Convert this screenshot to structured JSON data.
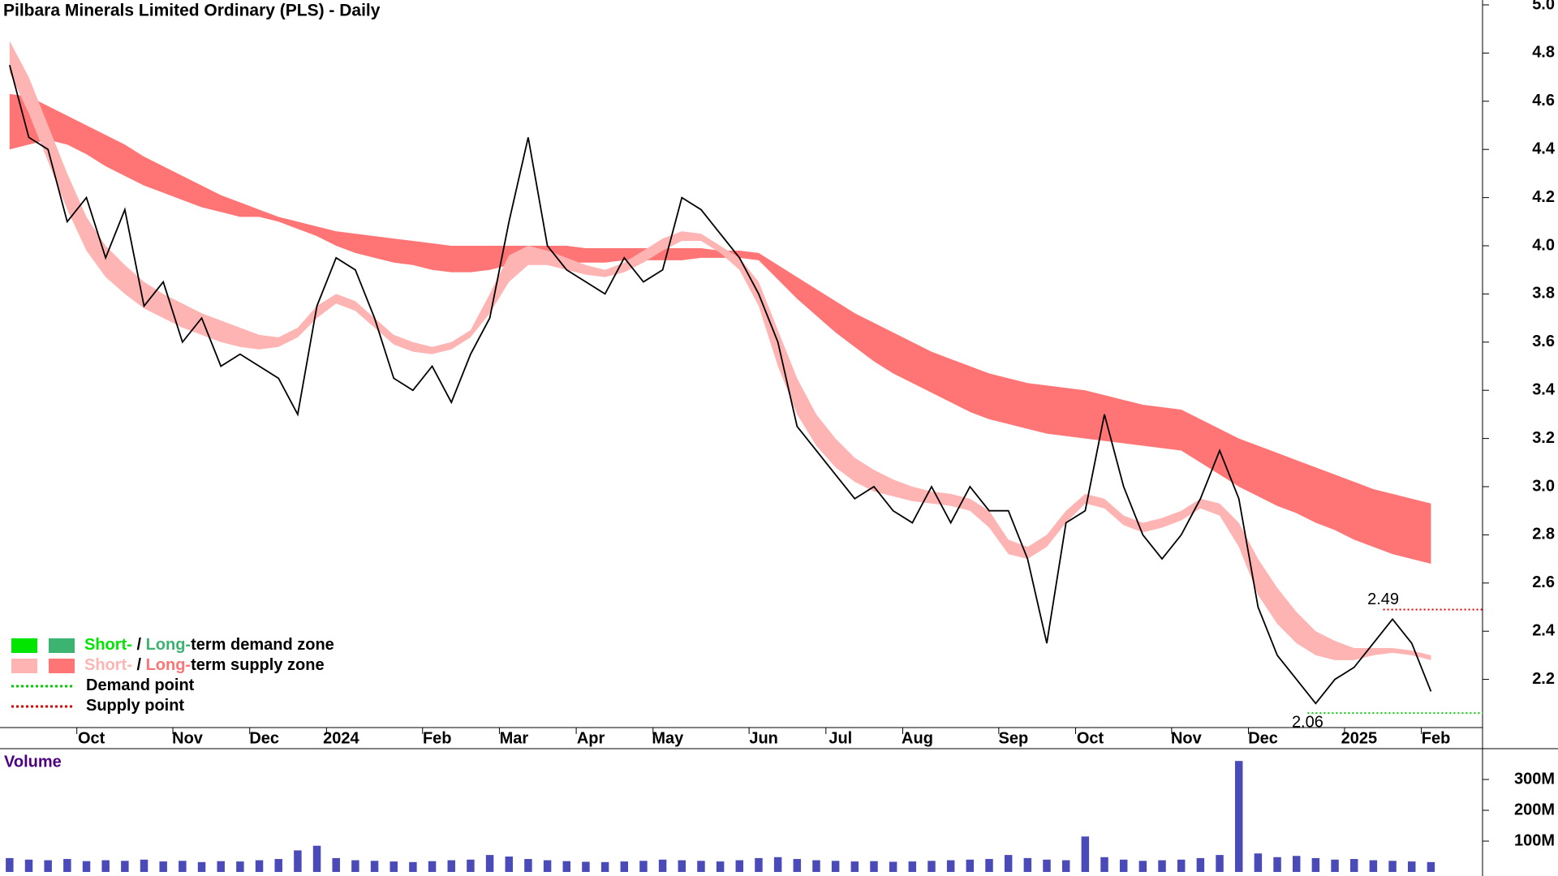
{
  "chart_data": [
    {
      "type": "line",
      "title": "Pilbara Minerals Limited Ordinary (PLS) - Daily",
      "categories": [
        null,
        null,
        null,
        null,
        "Oct",
        null,
        null,
        null,
        null,
        "Nov",
        null,
        null,
        null,
        "Dec",
        null,
        null,
        null,
        "2024",
        null,
        null,
        null,
        null,
        "Feb",
        null,
        null,
        null,
        "Mar",
        null,
        null,
        null,
        "Apr",
        null,
        null,
        null,
        "May",
        null,
        null,
        null,
        null,
        "Jun",
        null,
        null,
        null,
        "Jul",
        null,
        null,
        null,
        "Aug",
        null,
        null,
        null,
        null,
        "Sep",
        null,
        null,
        null,
        "Oct",
        null,
        null,
        null,
        null,
        "Nov",
        null,
        null,
        null,
        "Dec",
        null,
        null,
        null,
        null,
        "2025",
        null,
        null,
        null,
        "Feb"
      ],
      "series": [
        {
          "color": "#000000",
          "values": [
            4.75,
            4.45,
            4.4,
            4.1,
            4.2,
            3.95,
            4.15,
            3.75,
            3.85,
            3.6,
            3.7,
            3.5,
            3.55,
            3.5,
            3.45,
            3.3,
            3.75,
            3.95,
            3.9,
            3.7,
            3.45,
            3.4,
            3.5,
            3.35,
            3.55,
            3.7,
            4.1,
            4.45,
            4.0,
            3.9,
            3.85,
            3.8,
            3.95,
            3.85,
            3.9,
            4.2,
            4.15,
            4.05,
            3.95,
            3.8,
            3.6,
            3.25,
            3.15,
            3.05,
            2.95,
            3.0,
            2.9,
            2.85,
            3.0,
            2.85,
            3.0,
            2.9,
            2.9,
            2.7,
            2.35,
            2.85,
            2.9,
            3.3,
            3.0,
            2.8,
            2.7,
            2.8,
            2.95,
            3.15,
            2.95,
            2.5,
            2.3,
            2.2,
            2.1,
            2.2,
            2.25,
            2.35,
            2.45,
            2.35,
            2.15
          ]
        }
      ],
      "bands": [
        {
          "color": "#ff7474",
          "upper": [
            4.63,
            4.62,
            4.58,
            4.54,
            4.5,
            4.46,
            4.42,
            4.37,
            4.33,
            4.29,
            4.25,
            4.21,
            4.18,
            4.15,
            4.12,
            4.1,
            4.08,
            4.06,
            4.05,
            4.04,
            4.03,
            4.02,
            4.01,
            4.0,
            4.0,
            4.0,
            4.0,
            4.0,
            4.0,
            4.0,
            3.99,
            3.99,
            3.99,
            3.99,
            3.99,
            3.99,
            3.99,
            3.98,
            3.98,
            3.97,
            3.92,
            3.87,
            3.82,
            3.77,
            3.72,
            3.68,
            3.64,
            3.6,
            3.56,
            3.53,
            3.5,
            3.47,
            3.45,
            3.43,
            3.42,
            3.41,
            3.4,
            3.38,
            3.36,
            3.34,
            3.33,
            3.32,
            3.28,
            3.24,
            3.2,
            3.17,
            3.14,
            3.11,
            3.08,
            3.05,
            3.02,
            2.99,
            2.97,
            2.95,
            2.93
          ],
          "lower": [
            4.4,
            4.42,
            4.44,
            4.42,
            4.38,
            4.33,
            4.29,
            4.25,
            4.22,
            4.19,
            4.16,
            4.14,
            4.12,
            4.12,
            4.1,
            4.07,
            4.04,
            4.0,
            3.97,
            3.95,
            3.93,
            3.92,
            3.9,
            3.89,
            3.89,
            3.9,
            3.92,
            3.93,
            3.93,
            3.93,
            3.93,
            3.93,
            3.94,
            3.94,
            3.94,
            3.94,
            3.95,
            3.95,
            3.95,
            3.94,
            3.86,
            3.78,
            3.71,
            3.64,
            3.58,
            3.52,
            3.47,
            3.43,
            3.39,
            3.35,
            3.31,
            3.28,
            3.26,
            3.24,
            3.22,
            3.21,
            3.2,
            3.19,
            3.18,
            3.17,
            3.16,
            3.15,
            3.1,
            3.05,
            3.0,
            2.96,
            2.92,
            2.89,
            2.85,
            2.82,
            2.78,
            2.75,
            2.72,
            2.7,
            2.68
          ]
        },
        {
          "color": "#ffb4b4",
          "upper": [
            4.85,
            4.7,
            4.5,
            4.3,
            4.12,
            4.0,
            3.92,
            3.85,
            3.8,
            3.76,
            3.72,
            3.69,
            3.66,
            3.63,
            3.62,
            3.66,
            3.75,
            3.8,
            3.77,
            3.7,
            3.63,
            3.6,
            3.58,
            3.6,
            3.65,
            3.8,
            3.96,
            4.0,
            3.98,
            3.95,
            3.92,
            3.9,
            3.93,
            3.98,
            4.03,
            4.06,
            4.05,
            4.0,
            3.95,
            3.85,
            3.65,
            3.45,
            3.3,
            3.2,
            3.12,
            3.07,
            3.03,
            3.0,
            2.98,
            2.97,
            2.95,
            2.9,
            2.78,
            2.75,
            2.8,
            2.9,
            2.97,
            2.95,
            2.88,
            2.85,
            2.87,
            2.9,
            2.95,
            2.93,
            2.85,
            2.7,
            2.58,
            2.48,
            2.4,
            2.36,
            2.33,
            2.33,
            2.33,
            2.32,
            2.3
          ],
          "lower": [
            4.72,
            4.55,
            4.35,
            4.15,
            3.98,
            3.87,
            3.8,
            3.74,
            3.7,
            3.66,
            3.63,
            3.6,
            3.58,
            3.57,
            3.58,
            3.62,
            3.7,
            3.76,
            3.73,
            3.66,
            3.59,
            3.56,
            3.55,
            3.57,
            3.62,
            3.72,
            3.85,
            3.92,
            3.92,
            3.9,
            3.88,
            3.87,
            3.89,
            3.93,
            3.98,
            4.02,
            4.02,
            3.97,
            3.9,
            3.75,
            3.5,
            3.3,
            3.17,
            3.08,
            3.02,
            2.98,
            2.96,
            2.94,
            2.93,
            2.92,
            2.9,
            2.83,
            2.72,
            2.7,
            2.75,
            2.85,
            2.93,
            2.91,
            2.84,
            2.81,
            2.83,
            2.86,
            2.91,
            2.88,
            2.75,
            2.55,
            2.43,
            2.35,
            2.3,
            2.28,
            2.28,
            2.3,
            2.31,
            2.3,
            2.28
          ]
        }
      ],
      "ylim": [
        2.0,
        5.0
      ],
      "yticks": [
        2.2,
        2.4,
        2.6,
        2.8,
        {
          "value": 3,
          "label": "3.0"
        },
        3.2,
        3.4,
        3.6,
        3.8,
        {
          "value": 4,
          "label": "4.0"
        },
        4.2,
        4.4,
        4.6,
        4.8,
        {
          "value": 5,
          "label": "5.0"
        }
      ],
      "annotations": [
        {
          "value": 2.49,
          "color": "#e00000"
        },
        {
          "value": 2.06,
          "color": "#00cc00"
        }
      ],
      "legend": [
        {
          "swatches": [
            "#00e600",
            "#3cb371"
          ],
          "parts": [
            {
              "text": "Short-",
              "color": "#00e600"
            },
            {
              "text": " / "
            },
            {
              "text": "Long-",
              "color": "#3cb371"
            },
            {
              "text": "term demand zone"
            }
          ]
        },
        {
          "swatches": [
            "#ffb4b4",
            "#ff7474"
          ],
          "parts": [
            {
              "text": "Short-",
              "color": "#ffb4b4"
            },
            {
              "text": " / "
            },
            {
              "text": "Long-",
              "color": "#ff7474"
            },
            {
              "text": "term supply zone"
            }
          ]
        },
        {
          "line": "#00cc00",
          "parts": [
            {
              "text": "Demand point"
            }
          ]
        },
        {
          "line": "#e00000",
          "parts": [
            {
              "text": "Supply point"
            }
          ]
        }
      ]
    },
    {
      "type": "bar",
      "label": "Volume",
      "color": "#4a4ab8",
      "values": [
        45,
        40,
        38,
        42,
        35,
        38,
        36,
        40,
        34,
        36,
        32,
        35,
        34,
        38,
        42,
        70,
        85,
        45,
        38,
        36,
        34,
        32,
        35,
        38,
        40,
        55,
        50,
        42,
        38,
        35,
        33,
        32,
        34,
        36,
        40,
        38,
        36,
        34,
        38,
        45,
        48,
        42,
        38,
        36,
        34,
        35,
        33,
        34,
        36,
        38,
        40,
        42,
        55,
        45,
        40,
        38,
        115,
        48,
        40,
        36,
        38,
        40,
        45,
        55,
        360,
        60,
        48,
        52,
        45,
        40,
        42,
        38,
        36,
        34,
        32
      ],
      "ylim": [
        0,
        400
      ],
      "yticks": [
        {
          "value": 100,
          "label": "100M"
        },
        {
          "value": 200,
          "label": "200M"
        },
        {
          "value": 300,
          "label": "300M"
        }
      ]
    }
  ]
}
